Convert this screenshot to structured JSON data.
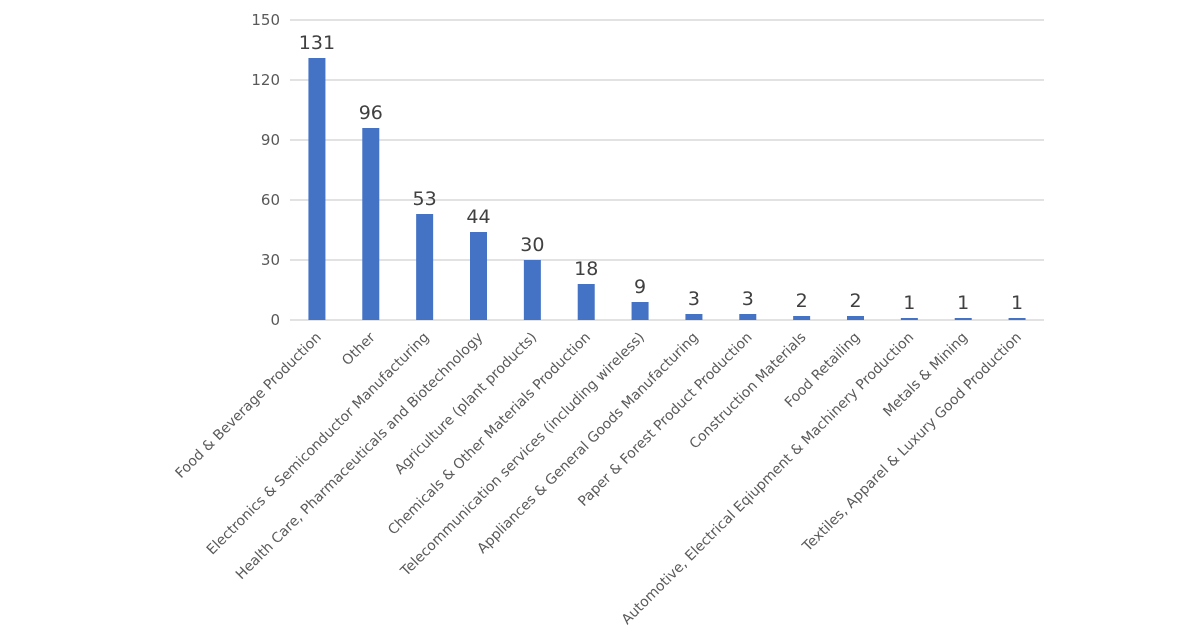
{
  "chart_data": {
    "type": "bar",
    "title": "",
    "xlabel": "",
    "ylabel": "",
    "ylim": [
      0,
      150
    ],
    "yticks": [
      0,
      30,
      60,
      90,
      120,
      150
    ],
    "grid": true,
    "legend": "none",
    "bar_color": "#4472c4",
    "data_labels": true,
    "categories": [
      "Food & Beverage Production",
      "Other",
      "Electronics & Semiconductor Manufacturing",
      "Health Care, Pharmaceuticals and Biotechnology",
      "Agriculture (plant products)",
      "Chemicals & Other Materials Production",
      "Telecommunication services (including wireless)",
      "Appliances & General Goods Manufacturing",
      "Paper & Forest Product Production",
      "Construction Materials",
      "Food Retailing",
      "Automotive, Electrical Eqiupment & Machinery Production",
      "Metals & Mining",
      "Textiles, Apparel & Luxury Good Production"
    ],
    "values": [
      131,
      96,
      53,
      44,
      30,
      18,
      9,
      3,
      3,
      2,
      2,
      1,
      1,
      1
    ]
  }
}
